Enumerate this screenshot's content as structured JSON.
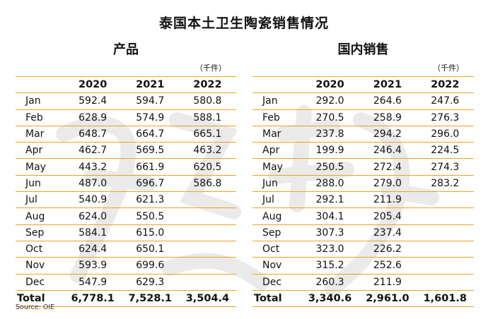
{
  "title": "泰国本土卫生陶瓷销售情况",
  "unit": "（千件）",
  "source": "Source: OIE",
  "panels": [
    {
      "heading": "产品",
      "columns": [
        "",
        "2020",
        "2021",
        "2022"
      ],
      "rows": [
        [
          "Jan",
          "592.4",
          "594.7",
          "580.8"
        ],
        [
          "Feb",
          "628.9",
          "574.9",
          "588.1"
        ],
        [
          "Mar",
          "648.7",
          "664.7",
          "665.1"
        ],
        [
          "Apr",
          "462.7",
          "569.5",
          "463.2"
        ],
        [
          "May",
          "443.2",
          "661.9",
          "620.5"
        ],
        [
          "Jun",
          "487.0",
          "696.7",
          "586.8"
        ],
        [
          "Jul",
          "540.9",
          "621.3",
          ""
        ],
        [
          "Aug",
          "624.0",
          "550.5",
          ""
        ],
        [
          "Sep",
          "584.1",
          "615.0",
          ""
        ],
        [
          "Oct",
          "624.4",
          "650.1",
          ""
        ],
        [
          "Nov",
          "593.9",
          "699.6",
          ""
        ],
        [
          "Dec",
          "547.9",
          "629.3",
          ""
        ],
        [
          "Total",
          "6,778.1",
          "7,528.1",
          "3,504.4"
        ]
      ]
    },
    {
      "heading": "国内销售",
      "columns": [
        "",
        "2020",
        "2021",
        "2022"
      ],
      "rows": [
        [
          "Jan",
          "292.0",
          "264.6",
          "247.6"
        ],
        [
          "Feb",
          "270.5",
          "258.9",
          "276.3"
        ],
        [
          "Mar",
          "237.8",
          "294.2",
          "296.0"
        ],
        [
          "Apr",
          "199.9",
          "246.4",
          "224.5"
        ],
        [
          "May",
          "250.5",
          "272.4",
          "274.3"
        ],
        [
          "Jun",
          "288.0",
          "279.0",
          "283.2"
        ],
        [
          "Jul",
          "292.1",
          "211.9",
          ""
        ],
        [
          "Aug",
          "304.1",
          "205.4",
          ""
        ],
        [
          "Sep",
          "307.3",
          "237.4",
          ""
        ],
        [
          "Oct",
          "323.0",
          "226.2",
          ""
        ],
        [
          "Nov",
          "315.2",
          "252.6",
          ""
        ],
        [
          "Dec",
          "260.3",
          "211.9",
          ""
        ],
        [
          "Total",
          "3,340.6",
          "2,961.0",
          "1,601.8"
        ]
      ]
    }
  ]
}
